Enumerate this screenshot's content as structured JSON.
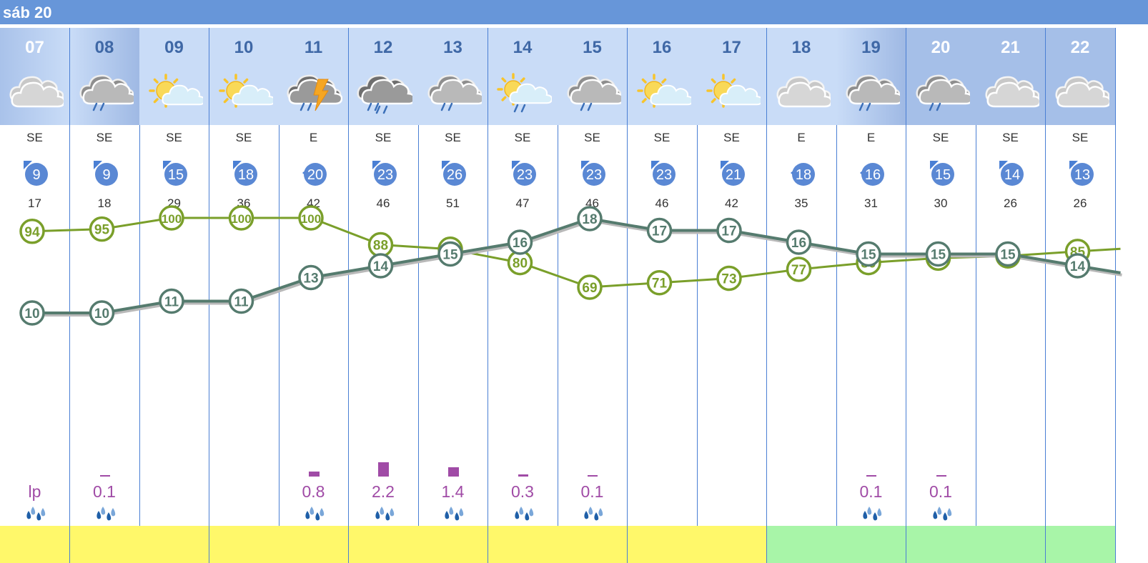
{
  "day_label": "sáb 20",
  "hours": [
    {
      "hour": "07",
      "icon": "cloudy-icon",
      "dir": "SE",
      "wind": "9",
      "gust": "17",
      "rain": "lp",
      "rain_mm": 0,
      "footer": "#fff86a"
    },
    {
      "hour": "08",
      "icon": "rain-cloud-icon",
      "dir": "SE",
      "wind": "9",
      "gust": "18",
      "rain": "0.1",
      "rain_mm": 0.1,
      "footer": "#fff86a"
    },
    {
      "hour": "09",
      "icon": "sun-cloud-icon",
      "dir": "SE",
      "wind": "15",
      "gust": "29",
      "rain": "",
      "rain_mm": 0,
      "footer": "#fff86a"
    },
    {
      "hour": "10",
      "icon": "sun-cloud-icon",
      "dir": "SE",
      "wind": "18",
      "gust": "36",
      "rain": "",
      "rain_mm": 0,
      "footer": "#fff86a"
    },
    {
      "hour": "11",
      "icon": "thunderstorm-icon",
      "dir": "E",
      "wind": "20",
      "gust": "42",
      "rain": "0.8",
      "rain_mm": 0.8,
      "footer": "#fff86a"
    },
    {
      "hour": "12",
      "icon": "heavy-rain-icon",
      "dir": "SE",
      "wind": "23",
      "gust": "46",
      "rain": "2.2",
      "rain_mm": 2.2,
      "footer": "#fff86a"
    },
    {
      "hour": "13",
      "icon": "rain-cloud-icon",
      "dir": "SE",
      "wind": "26",
      "gust": "51",
      "rain": "1.4",
      "rain_mm": 1.4,
      "footer": "#fff86a"
    },
    {
      "hour": "14",
      "icon": "sun-rain-icon",
      "dir": "SE",
      "wind": "23",
      "gust": "47",
      "rain": "0.3",
      "rain_mm": 0.3,
      "footer": "#fff86a"
    },
    {
      "hour": "15",
      "icon": "rain-cloud-icon",
      "dir": "SE",
      "wind": "23",
      "gust": "46",
      "rain": "0.1",
      "rain_mm": 0.1,
      "footer": "#fff86a"
    },
    {
      "hour": "16",
      "icon": "sun-cloud-icon",
      "dir": "SE",
      "wind": "23",
      "gust": "46",
      "rain": "",
      "rain_mm": 0,
      "footer": "#fff86a"
    },
    {
      "hour": "17",
      "icon": "sun-cloud-icon",
      "dir": "SE",
      "wind": "21",
      "gust": "42",
      "rain": "",
      "rain_mm": 0,
      "footer": "#fff86a"
    },
    {
      "hour": "18",
      "icon": "cloudy-icon",
      "dir": "E",
      "wind": "18",
      "gust": "35",
      "rain": "",
      "rain_mm": 0,
      "footer": "#a8f5a8"
    },
    {
      "hour": "19",
      "icon": "rain-cloud-icon",
      "dir": "E",
      "wind": "16",
      "gust": "31",
      "rain": "0.1",
      "rain_mm": 0.1,
      "footer": "#a8f5a8"
    },
    {
      "hour": "20",
      "icon": "rain-cloud-icon",
      "dir": "SE",
      "wind": "15",
      "gust": "30",
      "rain": "0.1",
      "rain_mm": 0.1,
      "footer": "#a8f5a8"
    },
    {
      "hour": "21",
      "icon": "cloudy-icon",
      "dir": "SE",
      "wind": "14",
      "gust": "26",
      "rain": "",
      "rain_mm": 0,
      "footer": "#a8f5a8"
    },
    {
      "hour": "22",
      "icon": "cloudy-icon",
      "dir": "SE",
      "wind": "13",
      "gust": "26",
      "rain": "",
      "rain_mm": 0,
      "footer": "#a8f5a8"
    }
  ],
  "chart_data": {
    "type": "line",
    "categories": [
      "07",
      "08",
      "09",
      "10",
      "11",
      "12",
      "13",
      "14",
      "15",
      "16",
      "17",
      "18",
      "19",
      "20",
      "21",
      "22"
    ],
    "series": [
      {
        "values": [
          94,
          95,
          100,
          100,
          100,
          88,
          86,
          80,
          69,
          71,
          73,
          77,
          80,
          82,
          83,
          85
        ],
        "color": "#7a9f2a"
      },
      {
        "values": [
          10,
          10,
          11,
          11,
          13,
          14,
          15,
          16,
          18,
          17,
          17,
          16,
          15,
          15,
          15,
          14
        ],
        "color": "#557b6e"
      }
    ]
  },
  "colors": {
    "header": "#6796d9",
    "column_header": "#c9dcf7",
    "wind_circle": "#5a88d4",
    "rain": "#a04ba6",
    "humidity_line": "#7a9f2a",
    "temp_line": "#557b6e"
  }
}
